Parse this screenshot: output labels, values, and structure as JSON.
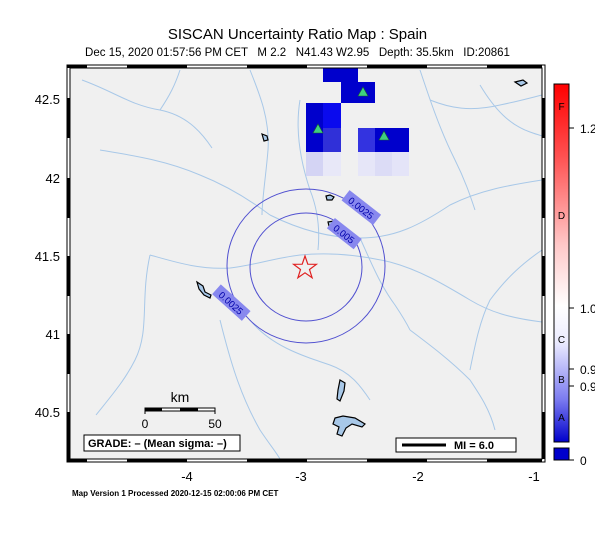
{
  "header": {
    "title": "SISCAN Uncertainty Ratio Map : Spain",
    "subtitle": "Dec 15, 2020 01:57:56 PM CET   M 2.2   N41.43 W2.95   Depth: 35.5km   ID:20861"
  },
  "footer": {
    "processed": "Map Version 1 Processed 2020-12-15 02:00:06 PM CET"
  },
  "map": {
    "lat_ticks": [
      "42.5",
      "42",
      "41.5",
      "41",
      "40.5"
    ],
    "lon_ticks": [
      "-4",
      "-3",
      "-2",
      "-1"
    ],
    "contours": [
      "0.0025",
      "0.005",
      "0.0025"
    ],
    "scale_bar": {
      "unit": "km",
      "ticks": [
        "0",
        "50"
      ]
    },
    "grade_label": "GRADE: – (Mean sigma: –)",
    "mi_legend": "MI = 6.0",
    "epicenter": {
      "lat": 41.43,
      "lon": -2.95
    },
    "colors": {
      "ocean": "#f0f0f0",
      "rivers": "#a8c8e8",
      "contour": "#5050d0",
      "epicenter": "#e02020",
      "station": "#3fcf80",
      "high": "#ff0000",
      "low": "#0000cc"
    }
  },
  "colorbar": {
    "grades": [
      "F",
      "D",
      "C",
      "B",
      "A"
    ],
    "values": [
      "1.2",
      "1.0",
      "0.9",
      "0.9",
      "0"
    ]
  }
}
